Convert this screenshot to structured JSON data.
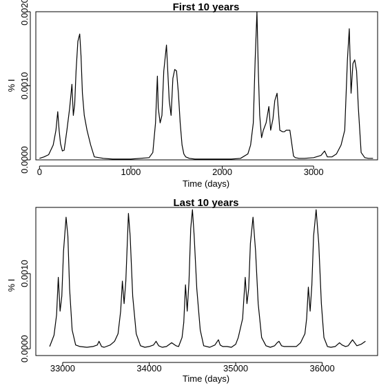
{
  "chart_data": [
    {
      "type": "line",
      "title": "First 10 years",
      "xlabel": "Time (days)",
      "ylabel": "% I",
      "xlim": [
        -40,
        3700
      ],
      "ylim": [
        0,
        0.002
      ],
      "xticks": [
        0,
        1000,
        2000,
        3000
      ],
      "yticks": [
        0.0,
        0.001,
        0.002
      ],
      "ytick_labels": [
        "0.0000",
        "0.0010",
        "0.0020"
      ],
      "grid": false,
      "series": [
        {
          "x": [
            0,
            50,
            100,
            150,
            180,
            200,
            215,
            230,
            250,
            270,
            300,
            330,
            355,
            370,
            385,
            400,
            420,
            440,
            455,
            470,
            490,
            520,
            560,
            600,
            700,
            800,
            900,
            1000,
            1100,
            1200,
            1240,
            1270,
            1290,
            1300,
            1320,
            1340,
            1360,
            1390,
            1420,
            1440,
            1460,
            1480,
            1500,
            1520,
            1540,
            1560,
            1580,
            1600,
            1640,
            1700,
            1800,
            1900,
            2000,
            2100,
            2200,
            2280,
            2310,
            2340,
            2360,
            2380,
            2395,
            2410,
            2430,
            2450,
            2480,
            2510,
            2530,
            2555,
            2575,
            2600,
            2630,
            2660,
            2680,
            2700,
            2740,
            2780,
            2800,
            2840,
            2900,
            3000,
            3080,
            3120,
            3150,
            3200,
            3250,
            3300,
            3340,
            3370,
            3390,
            3410,
            3430,
            3450,
            3470,
            3490,
            3520,
            3560,
            3600,
            3650
          ],
          "y": [
            2e-05,
            4e-05,
            7e-05,
            0.0002,
            0.0004,
            0.00065,
            0.0004,
            0.00022,
            0.00012,
            0.00013,
            0.0004,
            0.0007,
            0.00102,
            0.0006,
            0.00075,
            0.0012,
            0.0016,
            0.0017,
            0.0014,
            0.0009,
            0.0006,
            0.0004,
            0.0002,
            4e-05,
            2e-05,
            1e-05,
            1e-05,
            1e-05,
            2e-05,
            3e-05,
            0.0001,
            0.0005,
            0.00113,
            0.0007,
            0.0005,
            0.0006,
            0.0012,
            0.00155,
            0.0008,
            0.0006,
            0.0011,
            0.00122,
            0.0012,
            0.0009,
            0.0005,
            0.0002,
            8e-05,
            4e-05,
            2e-05,
            1e-05,
            1e-05,
            1e-05,
            1e-05,
            1e-05,
            2e-05,
            8e-05,
            0.0002,
            0.0005,
            0.00135,
            0.002,
            0.0012,
            0.0006,
            0.0003,
            0.0004,
            0.0005,
            0.00072,
            0.0004,
            0.00055,
            0.0008,
            0.0009,
            0.0004,
            0.00038,
            0.00038,
            0.0004,
            0.0004,
            5e-05,
            3e-05,
            2e-05,
            2e-05,
            3e-05,
            6e-05,
            0.00012,
            4e-05,
            4e-05,
            8e-05,
            0.0002,
            0.0004,
            0.00135,
            0.00177,
            0.0009,
            0.0013,
            0.00135,
            0.0012,
            0.0007,
            0.0001,
            3e-05,
            2e-05,
            2e-05
          ]
        }
      ]
    },
    {
      "type": "line",
      "title": "Last 10 years",
      "xlabel": "Time (days)",
      "ylabel": "% I",
      "xlim": [
        32690,
        36640
      ],
      "ylim": [
        -9e-05,
        0.00188
      ],
      "xticks": [
        33000,
        34000,
        35000,
        36000
      ],
      "yticks": [
        0.0,
        0.001
      ],
      "ytick_labels": [
        "0.0000",
        "0.0010"
      ],
      "grid": false,
      "series": [
        {
          "x": [
            32850,
            32900,
            32930,
            32950,
            32970,
            32990,
            33010,
            33040,
            33060,
            33080,
            33110,
            33150,
            33200,
            33280,
            33350,
            33400,
            33420,
            33450,
            33480,
            33550,
            33600,
            33640,
            33670,
            33690,
            33710,
            33730,
            33760,
            33780,
            33810,
            33850,
            33900,
            33950,
            34000,
            34050,
            34080,
            34110,
            34150,
            34200,
            34260,
            34310,
            34340,
            34380,
            34400,
            34420,
            34440,
            34460,
            34480,
            34500,
            34520,
            34550,
            34590,
            34630,
            34700,
            34760,
            34800,
            34820,
            34850,
            34900,
            34950,
            35000,
            35030,
            35080,
            35110,
            35130,
            35150,
            35170,
            35200,
            35230,
            35260,
            35300,
            35350,
            35400,
            35450,
            35480,
            35500,
            35530,
            35560,
            35590,
            35640,
            35700,
            35750,
            35800,
            35820,
            35840,
            35860,
            35880,
            35900,
            35930,
            35960,
            35990,
            36020,
            36060,
            36100,
            36150,
            36200,
            36230,
            36270,
            36300,
            36350,
            36400,
            36450,
            36500
          ],
          "y": [
            3e-05,
            0.00018,
            0.00045,
            0.00095,
            0.0005,
            0.0007,
            0.0013,
            0.00175,
            0.0015,
            0.0008,
            0.00025,
            5e-05,
            3e-05,
            2e-05,
            3e-05,
            5e-05,
            0.0001,
            3e-05,
            2e-05,
            5e-05,
            0.0001,
            0.0002,
            0.0005,
            0.0009,
            0.0006,
            0.0009,
            0.0018,
            0.0015,
            0.0007,
            0.0002,
            4e-05,
            2e-05,
            3e-05,
            5e-05,
            0.0001,
            4e-05,
            2e-05,
            3e-05,
            8e-05,
            4e-05,
            3e-05,
            0.00015,
            0.00035,
            0.00085,
            0.0005,
            0.0009,
            0.0016,
            0.00185,
            0.0015,
            0.0008,
            0.00025,
            4e-05,
            2e-05,
            5e-05,
            0.00012,
            5e-05,
            3e-05,
            3e-05,
            2e-05,
            6e-05,
            0.00015,
            0.0004,
            0.00095,
            0.0006,
            0.0008,
            0.0014,
            0.00175,
            0.0013,
            0.0006,
            0.00015,
            4e-05,
            2e-05,
            4e-05,
            8e-05,
            0.0001,
            4e-05,
            3e-05,
            3e-05,
            3e-05,
            3e-05,
            8e-05,
            0.0002,
            0.0004,
            0.00082,
            0.0005,
            0.00085,
            0.0015,
            0.00185,
            0.0014,
            0.0006,
            0.00015,
            3e-05,
            2e-05,
            3e-05,
            8e-05,
            5e-05,
            3e-05,
            4e-05,
            0.00012,
            4e-05,
            6e-05,
            0.0001
          ]
        }
      ]
    }
  ]
}
